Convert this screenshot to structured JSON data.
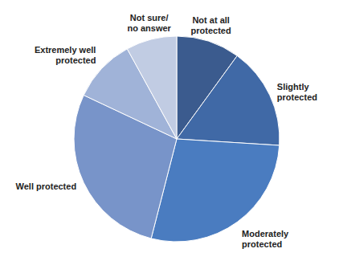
{
  "chart_data": {
    "type": "pie",
    "categories": [
      "Not at all protected",
      "Slightly protected",
      "Moderately protected",
      "Well protected",
      "Extremely well protected",
      "Not sure/ no answer"
    ],
    "values": [
      10,
      16,
      28,
      28,
      10,
      8
    ],
    "colors": [
      "#3b5b8e",
      "#4069a6",
      "#4a7cc0",
      "#7894c9",
      "#a0b3d8",
      "#c1cce3"
    ]
  }
}
